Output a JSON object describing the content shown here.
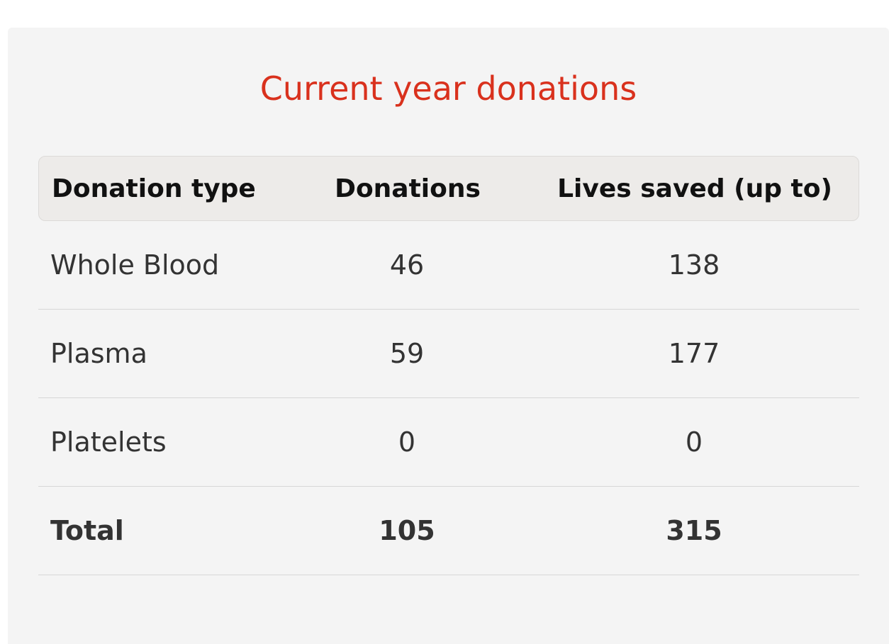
{
  "title": "Current year donations",
  "colors": {
    "title": "#d9311d",
    "card_background": "#f4f4f4",
    "header_background": "#edebe9"
  },
  "table": {
    "headers": [
      "Donation type",
      "Donations",
      "Lives saved (up to)"
    ],
    "rows": [
      {
        "type": "Whole Blood",
        "donations": "46",
        "lives": "138"
      },
      {
        "type": "Plasma",
        "donations": "59",
        "lives": "177"
      },
      {
        "type": "Platelets",
        "donations": "0",
        "lives": "0"
      }
    ],
    "total": {
      "type": "Total",
      "donations": "105",
      "lives": "315"
    }
  }
}
